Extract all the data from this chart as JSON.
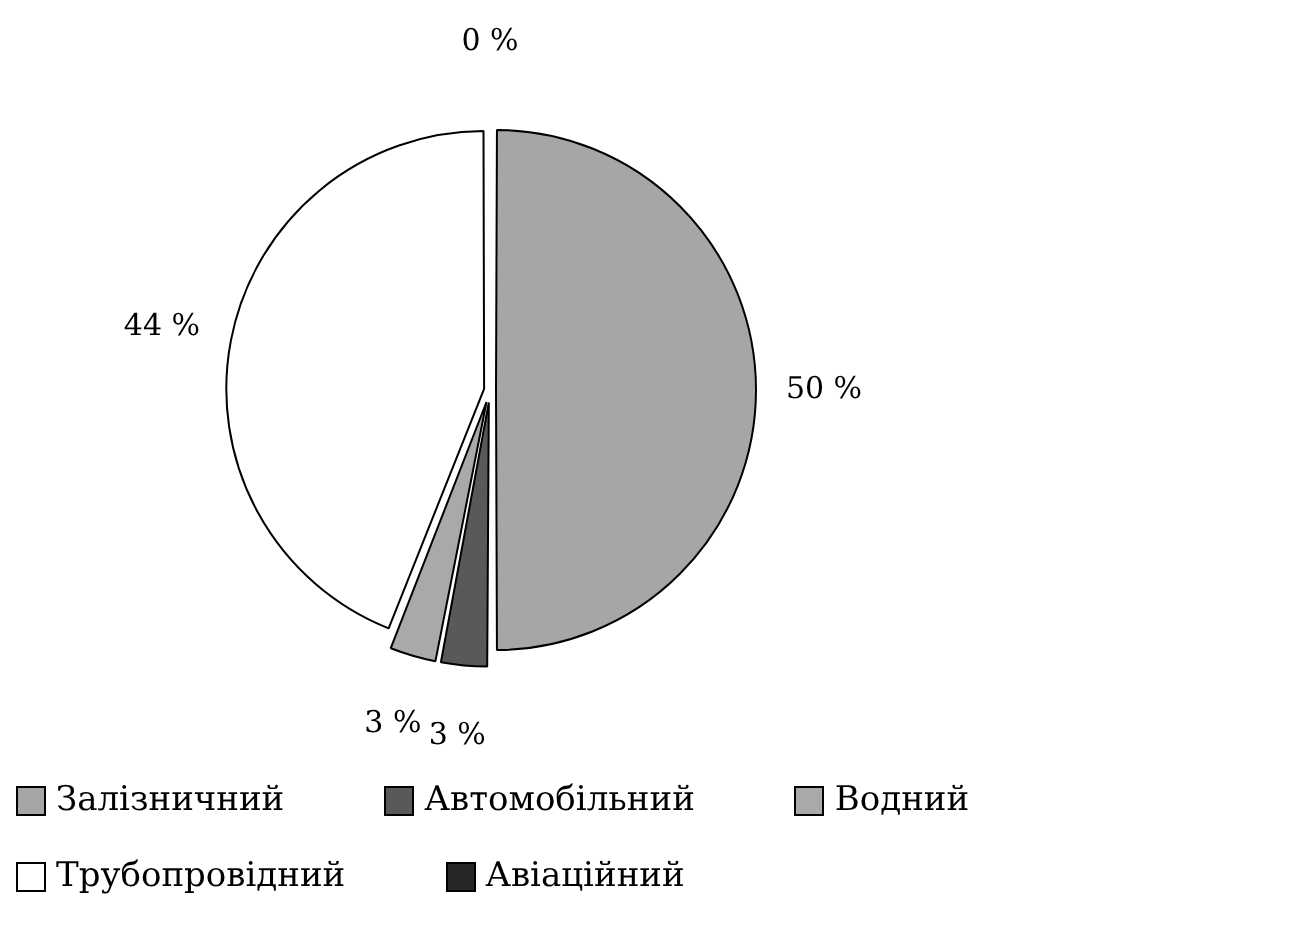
{
  "chart_data": {
    "type": "pie",
    "categories": [
      "Залізничний",
      "Автомобільний",
      "Водний",
      "Трубопровідний",
      "Авіаційний"
    ],
    "values": [
      50,
      3,
      3,
      44,
      0
    ],
    "colors": [
      "#a6a6a6",
      "#595959",
      "#a9a9a9",
      "#ffffff",
      "#262626"
    ],
    "value_labels": [
      "50 %",
      "3 %",
      "3 %",
      "44 %",
      "0 %"
    ],
    "legend": "bottom"
  }
}
